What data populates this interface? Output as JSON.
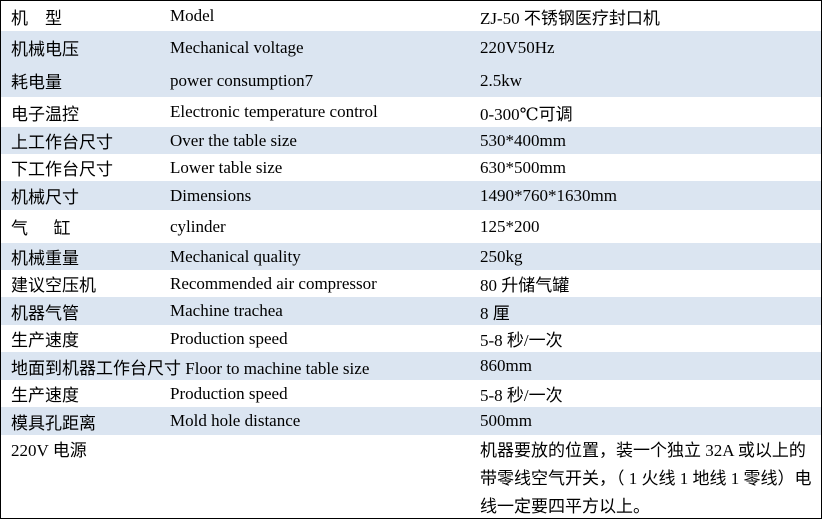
{
  "table": {
    "rows": [
      [
        "机    型",
        "Model",
        "ZJ-50 不锈钢医疗封口机"
      ],
      [
        "机械电压",
        "Mechanical voltage",
        "220V50Hz"
      ],
      [
        "耗电量",
        "power consumption7",
        "2.5kw"
      ],
      [
        "电子温控",
        "Electronic temperature control",
        "0-300℃可调"
      ],
      [
        "上工作台尺寸",
        "Over the table size",
        "530*400mm"
      ],
      [
        "下工作台尺寸",
        "Lower table size",
        "630*500mm"
      ],
      [
        "机械尺寸",
        "Dimensions",
        "1490*760*1630mm"
      ],
      [
        "气      缸",
        "cylinder",
        "125*200"
      ],
      [
        "机械重量",
        "Mechanical quality",
        "250kg"
      ],
      [
        "建议空压机",
        "Recommended air compressor",
        "80 升储气罐"
      ],
      [
        "机器气管",
        "Machine trachea",
        "8 厘"
      ],
      [
        "生产速度",
        "Production speed",
        "5-8 秒/一次"
      ],
      [
        "地面到机器工作台尺寸 Floor to machine table size",
        "860mm"
      ],
      [
        "生产速度",
        "Production speed",
        "5-8 秒/一次"
      ],
      [
        "模具孔距离",
        "Mold hole distance",
        "500mm"
      ],
      [
        "220V 电源",
        "机器要放的位置，装一个独立 32A 或以上的带零线空气开关，（ 1 火线 1 地线 1 零线）电线一定要四平方以上。"
      ]
    ]
  }
}
